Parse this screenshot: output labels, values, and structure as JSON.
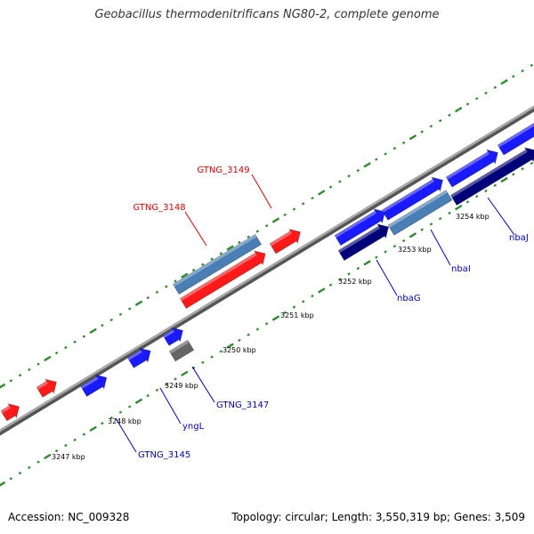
{
  "title": "Geobacillus thermodenitrificans NG80-2, complete genome",
  "footer": {
    "accession": "Accession: NC_009328",
    "stats": "Topology: circular; Length: 3,550,319 bp; Genes: 3,509"
  },
  "colors": {
    "background": "#ffffff",
    "backbone": "#888888",
    "dot_ring": "#2e8b2e",
    "gene_red": "#ff1a1a",
    "gene_blue": "#1a1aff",
    "gene_navy": "#00007a",
    "gene_steel": "#4a7fb5",
    "gene_gray": "#666666",
    "label_red": "#e00000",
    "label_blue": "#0000cc"
  },
  "tick_labels": [
    "3247 kbp",
    "3248 kbp",
    "3249 kbp",
    "3250 kbp",
    "3251 kbp",
    "3252 kbp",
    "3253 kbp",
    "3254 kbp"
  ],
  "gene_labels": [
    {
      "text": "GTNG_3149",
      "color": "red"
    },
    {
      "text": "GTNG_3148",
      "color": "red"
    },
    {
      "text": "nbaJ",
      "color": "blue"
    },
    {
      "text": "nbaI",
      "color": "blue"
    },
    {
      "text": "nbaG",
      "color": "blue"
    },
    {
      "text": "GTNG_3147",
      "color": "blue"
    },
    {
      "text": "yngL",
      "color": "blue"
    },
    {
      "text": "GTNG_3145",
      "color": "blue"
    }
  ]
}
